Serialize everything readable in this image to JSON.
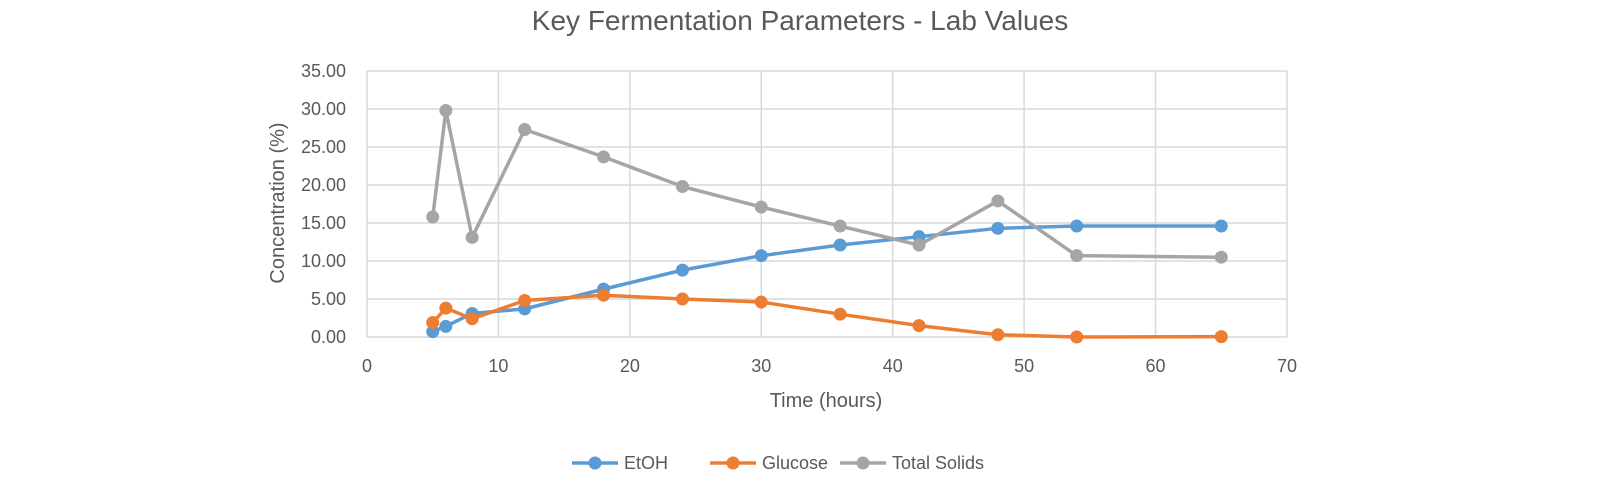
{
  "chart_data": {
    "type": "line",
    "title": "Key Fermentation Parameters - Lab Values",
    "xlabel": "Time (hours)",
    "ylabel": "Concentration (%)",
    "xlim": [
      0,
      70
    ],
    "ylim": [
      0,
      35
    ],
    "x_ticks": [
      "0",
      "10",
      "20",
      "30",
      "40",
      "50",
      "60",
      "70"
    ],
    "y_ticks": [
      "0.00",
      "5.00",
      "10.00",
      "15.00",
      "20.00",
      "25.00",
      "30.00",
      "35.00"
    ],
    "grid": true,
    "legend_position": "bottom",
    "x": [
      5,
      6,
      8,
      12,
      18,
      24,
      30,
      36,
      42,
      48,
      54,
      65
    ],
    "series": [
      {
        "name": "EtOH",
        "color": "#5b9bd5",
        "values": [
          0.7,
          1.4,
          3.1,
          3.7,
          6.3,
          8.8,
          10.7,
          12.1,
          13.2,
          14.3,
          14.6,
          14.6
        ]
      },
      {
        "name": "Glucose",
        "color": "#ed7d31",
        "values": [
          1.9,
          3.8,
          2.4,
          4.8,
          5.5,
          5.0,
          4.6,
          3.0,
          1.5,
          0.3,
          0.0,
          0.05
        ]
      },
      {
        "name": "Total Solids",
        "color": "#a5a5a5",
        "values": [
          15.8,
          29.8,
          13.1,
          27.3,
          23.7,
          19.8,
          17.1,
          14.6,
          12.1,
          17.9,
          10.7,
          10.5
        ]
      }
    ]
  }
}
